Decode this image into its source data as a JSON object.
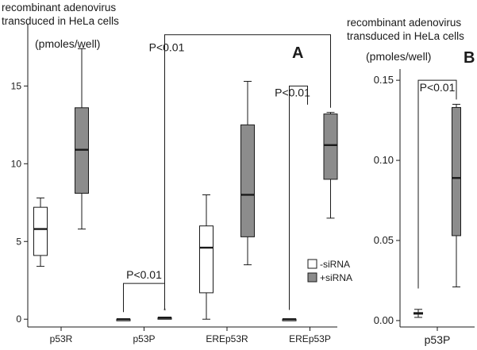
{
  "figure": {
    "left_caption_line1": "recombinant adenovirus",
    "left_caption_line2": "transduced in HeLa cells",
    "left_unit": "(pmoles/well)",
    "left_letter": "A",
    "right_caption_line1": "recombinant adenovirus",
    "right_caption_line2": "transduced in HeLa cells",
    "right_unit": "(pmoles/well)",
    "right_letter": "B"
  },
  "legend": {
    "items": [
      {
        "label": "-siRNA",
        "color": "#ffffff"
      },
      {
        "label": "+siRNA",
        "color": "#8c8c8c"
      }
    ]
  },
  "colors": {
    "minus_sirna": "#ffffff",
    "plus_sirna": "#8c8c8c",
    "line": "#1a1a1a"
  },
  "chart_data": [
    {
      "type": "boxplot",
      "panel": "A",
      "ylim": [
        -0.5,
        19
      ],
      "yticks": [
        0,
        5,
        10,
        15
      ],
      "categories": [
        "p53R",
        "p53P",
        "EREp53R",
        "EREp53P"
      ],
      "series": [
        {
          "name": "-siRNA",
          "boxes": [
            {
              "min": 3.4,
              "q1": 4.1,
              "median": 5.8,
              "q3": 7.2,
              "max": 7.8
            },
            {
              "min": 0,
              "q1": 0,
              "median": 0,
              "q3": 0,
              "max": 0
            },
            {
              "min": 0,
              "q1": 1.7,
              "median": 4.6,
              "q3": 6.0,
              "max": 8.0
            },
            {
              "min": 0,
              "q1": 0,
              "median": 0,
              "q3": 0,
              "max": 0
            }
          ]
        },
        {
          "name": "+siRNA",
          "boxes": [
            {
              "min": 5.8,
              "q1": 8.1,
              "median": 10.9,
              "q3": 13.6,
              "max": 17.4
            },
            {
              "min": 0.05,
              "q1": 0.05,
              "median": 0.1,
              "q3": 0.1,
              "max": 0.1,
              "outlier": 0.4
            },
            {
              "min": 3.5,
              "q1": 5.3,
              "median": 8.0,
              "q3": 12.5,
              "max": 15.3
            },
            {
              "min": 6.5,
              "q1": 9.0,
              "median": 11.2,
              "q3": 13.2,
              "max": 13.3
            }
          ]
        }
      ],
      "annotations": [
        "P<0.01",
        "P<0.01",
        "P<0.01"
      ]
    },
    {
      "type": "boxplot",
      "panel": "B",
      "ylim": [
        -0.004,
        0.157
      ],
      "yticks": [
        0.0,
        0.05,
        0.1,
        0.15
      ],
      "ytick_labels": [
        "0.00",
        "0.05",
        "0.10",
        "0.15"
      ],
      "categories": [
        "p53P"
      ],
      "series": [
        {
          "name": "-siRNA",
          "boxes": [
            {
              "min": 0.002,
              "q1": 0.004,
              "median": 0.0045,
              "q3": 0.005,
              "max": 0.007
            }
          ]
        },
        {
          "name": "+siRNA",
          "boxes": [
            {
              "min": 0.021,
              "q1": 0.053,
              "median": 0.089,
              "q3": 0.133,
              "max": 0.135
            }
          ]
        }
      ],
      "annotations": [
        "P<0.01"
      ]
    }
  ]
}
